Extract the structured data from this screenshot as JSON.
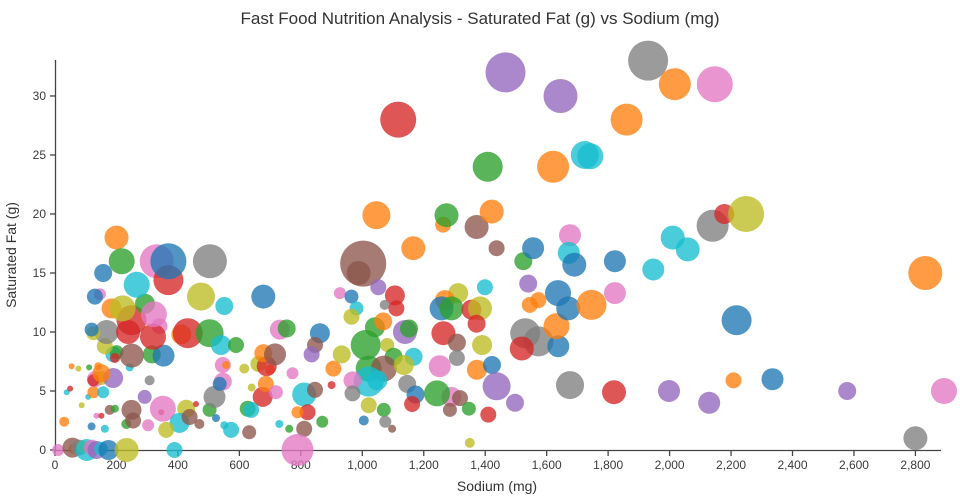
{
  "title": "Fast Food Nutrition Analysis - Saturated Fat (g) vs Sodium (mg)",
  "x_axis": {
    "label": "Sodium (mg)",
    "ticks": [
      0,
      200,
      400,
      600,
      800,
      1000,
      1200,
      1400,
      1600,
      1800,
      2000,
      2200,
      2400,
      2600,
      2800
    ],
    "range": [
      0,
      2880
    ],
    "tick_format": "comma"
  },
  "y_axis": {
    "label": "Saturated Fat (g)",
    "ticks": [
      0,
      5,
      10,
      15,
      20,
      25,
      30
    ],
    "range": [
      0,
      33.05
    ]
  },
  "style": {
    "background": "#ffffff",
    "axis_color": "#444444",
    "text_color": "#333333",
    "tick_label_color": "#3b3b3b",
    "marker_opacity": 0.78,
    "palette": {
      "blue": "#1f77b4",
      "orange": "#ff7f0e",
      "green": "#2ca02c",
      "red": "#d62728",
      "purple": "#9467bd",
      "brown": "#8c564b",
      "pink": "#e377c2",
      "gray": "#7f7f7f",
      "olive": "#bcbd22",
      "cyan": "#17becf"
    }
  },
  "chart_data": {
    "type": "scatter",
    "x_field": "sodium_mg",
    "y_field": "saturated_fat_g",
    "size_field": "marker_radius_px",
    "color_field": "category_color",
    "points": [
      [
        60,
        0.1,
        5,
        "orange"
      ],
      [
        10,
        0,
        6,
        "pink"
      ],
      [
        57,
        0.2,
        10,
        "brown"
      ],
      [
        78,
        0.2,
        8,
        "gray"
      ],
      [
        90,
        0.3,
        6,
        "olive"
      ],
      [
        103,
        0,
        11,
        "cyan"
      ],
      [
        120,
        0.2,
        8,
        "pink"
      ],
      [
        135,
        0,
        9,
        "purple"
      ],
      [
        150,
        0.1,
        7,
        "cyan"
      ],
      [
        174,
        0,
        10,
        "blue"
      ],
      [
        233,
        0,
        12,
        "olive"
      ],
      [
        389,
        0,
        8,
        "cyan"
      ],
      [
        30,
        2.4,
        5,
        "orange"
      ],
      [
        38,
        4.9,
        3,
        "cyan"
      ],
      [
        49,
        5.2,
        3,
        "red"
      ],
      [
        54,
        7.1,
        3,
        "orange"
      ],
      [
        76,
        6.9,
        3,
        "olive"
      ],
      [
        87,
        3.8,
        3,
        "olive"
      ],
      [
        108,
        4.5,
        3,
        "cyan"
      ],
      [
        111,
        7,
        3,
        "green"
      ],
      [
        135,
        2.9,
        3,
        "pink"
      ],
      [
        151,
        2.9,
        3,
        "red"
      ],
      [
        119,
        2,
        4,
        "blue"
      ],
      [
        162,
        1.8,
        4,
        "cyan"
      ],
      [
        141,
        7.1,
        4,
        "orange"
      ],
      [
        243,
        7,
        4,
        "cyan"
      ],
      [
        125,
        4.9,
        6,
        "orange"
      ],
      [
        157,
        4.9,
        6,
        "cyan"
      ],
      [
        130,
        6,
        8,
        "pink"
      ],
      [
        151,
        6.1,
        7,
        "olive"
      ],
      [
        189,
        6.1,
        10,
        "purple"
      ],
      [
        308,
        5.9,
        5,
        "gray"
      ],
      [
        125,
        5.9,
        6,
        "red"
      ],
      [
        151,
        6.5,
        9,
        "orange"
      ],
      [
        178,
        3.4,
        5,
        "brown"
      ],
      [
        195,
        3.5,
        4,
        "green"
      ],
      [
        232,
        2.2,
        5,
        "green"
      ],
      [
        249,
        3.4,
        10,
        "brown"
      ],
      [
        254,
        2.5,
        8,
        "brown"
      ],
      [
        303,
        2.1,
        6,
        "pink"
      ],
      [
        346,
        3.2,
        3,
        "red"
      ],
      [
        292,
        4.5,
        7,
        "purple"
      ],
      [
        351,
        3.5,
        13,
        "pink"
      ],
      [
        427,
        3.5,
        9,
        "olive"
      ],
      [
        405,
        2.3,
        10,
        "cyan"
      ],
      [
        362,
        1.7,
        8,
        "olive"
      ],
      [
        438,
        2.8,
        8,
        "brown"
      ],
      [
        470,
        2.2,
        5,
        "brown"
      ],
      [
        459,
        3.9,
        3,
        "red"
      ],
      [
        503,
        3.4,
        7,
        "green"
      ],
      [
        524,
        2.7,
        4,
        "blue"
      ],
      [
        551,
        2.1,
        4,
        "cyan"
      ],
      [
        519,
        4.5,
        11,
        "gray"
      ],
      [
        546,
        5.8,
        9,
        "pink"
      ],
      [
        536,
        5.6,
        7,
        "blue"
      ],
      [
        546,
        7.2,
        8,
        "pink"
      ],
      [
        557,
        7.2,
        4,
        "orange"
      ],
      [
        190,
        8.1,
        8,
        "cyan"
      ],
      [
        200,
        8.3,
        7,
        "green"
      ],
      [
        195,
        7.8,
        5,
        "red"
      ],
      [
        250,
        8,
        12,
        "brown"
      ],
      [
        315,
        8.1,
        9,
        "green"
      ],
      [
        353,
        8,
        11,
        "blue"
      ],
      [
        162,
        8.8,
        8,
        "olive"
      ],
      [
        168,
        10,
        12,
        "gray"
      ],
      [
        125,
        9.9,
        7,
        "olive"
      ],
      [
        119,
        10.2,
        7,
        "blue"
      ],
      [
        238,
        10,
        12,
        "red"
      ],
      [
        249,
        11,
        15,
        "red"
      ],
      [
        340,
        10.5,
        8,
        "pink"
      ],
      [
        319,
        9.6,
        13,
        "red"
      ],
      [
        411,
        9.8,
        10,
        "orange"
      ],
      [
        432,
        9.9,
        15,
        "red"
      ],
      [
        503,
        9.9,
        14,
        "green"
      ],
      [
        540,
        8.9,
        10,
        "cyan"
      ],
      [
        589,
        8.9,
        8,
        "green"
      ],
      [
        184,
        12,
        10,
        "orange"
      ],
      [
        220,
        12,
        13,
        "olive"
      ],
      [
        293,
        12.4,
        10,
        "green"
      ],
      [
        322,
        11.5,
        13,
        "pink"
      ],
      [
        146,
        13.2,
        6,
        "pink"
      ],
      [
        130,
        13,
        8,
        "blue"
      ],
      [
        266,
        14,
        13,
        "cyan"
      ],
      [
        475,
        13,
        14,
        "olive"
      ],
      [
        551,
        12.2,
        9,
        "cyan"
      ],
      [
        678,
        13,
        12,
        "blue"
      ],
      [
        200,
        18,
        12,
        "orange"
      ],
      [
        217,
        16,
        13,
        "green"
      ],
      [
        157,
        15,
        9,
        "blue"
      ],
      [
        331,
        16,
        17,
        "pink"
      ],
      [
        369,
        14.4,
        15,
        "red"
      ],
      [
        369,
        16,
        18,
        "blue"
      ],
      [
        504,
        16,
        17,
        "gray"
      ],
      [
        616,
        6.9,
        5,
        "olive"
      ],
      [
        700,
        6.8,
        5,
        "orange"
      ],
      [
        773,
        6.5,
        6,
        "pink"
      ],
      [
        900,
        5.5,
        4,
        "red"
      ],
      [
        640,
        5.3,
        4,
        "olive"
      ],
      [
        662,
        7.3,
        8,
        "olive"
      ],
      [
        689,
        7.1,
        10,
        "red"
      ],
      [
        678,
        8.2,
        9,
        "orange"
      ],
      [
        716,
        8.1,
        11,
        "brown"
      ],
      [
        676,
        4.5,
        10,
        "red"
      ],
      [
        686,
        5.6,
        8,
        "orange"
      ],
      [
        627,
        3.5,
        8,
        "green"
      ],
      [
        638,
        3.4,
        8,
        "cyan"
      ],
      [
        632,
        1.5,
        7,
        "brown"
      ],
      [
        573,
        1.7,
        8,
        "cyan"
      ],
      [
        719,
        4.9,
        7,
        "pink"
      ],
      [
        811,
        4.7,
        12,
        "cyan"
      ],
      [
        846,
        5.1,
        8,
        "brown"
      ],
      [
        822,
        3.2,
        8,
        "red"
      ],
      [
        811,
        1.8,
        8,
        "brown"
      ],
      [
        870,
        2.4,
        6,
        "green"
      ],
      [
        789,
        3.2,
        6,
        "orange"
      ],
      [
        762,
        1.8,
        4,
        "green"
      ],
      [
        730,
        2.2,
        4,
        "cyan"
      ],
      [
        789,
        0,
        16,
        "pink"
      ],
      [
        732,
        10.2,
        10,
        "pink"
      ],
      [
        754,
        10.3,
        9,
        "green"
      ],
      [
        862,
        9.9,
        10,
        "blue"
      ],
      [
        846,
        8.9,
        8,
        "brown"
      ],
      [
        835,
        8.1,
        8,
        "purple"
      ],
      [
        933,
        8.1,
        9,
        "olive"
      ],
      [
        906,
        6.9,
        8,
        "orange"
      ],
      [
        927,
        13.3,
        6,
        "pink"
      ],
      [
        965,
        13,
        7,
        "blue"
      ],
      [
        981,
        12,
        7,
        "cyan"
      ],
      [
        965,
        11.3,
        8,
        "olive"
      ],
      [
        1003,
        15.8,
        23,
        "brown"
      ],
      [
        988,
        15,
        12,
        "brown"
      ],
      [
        1052,
        13.8,
        8,
        "purple"
      ],
      [
        1106,
        13.1,
        10,
        "red"
      ],
      [
        1073,
        12.3,
        5,
        "gray"
      ],
      [
        1111,
        12,
        8,
        "red"
      ],
      [
        1312,
        13.3,
        10,
        "olive"
      ],
      [
        1269,
        12.7,
        10,
        "orange"
      ],
      [
        1258,
        12,
        12,
        "blue"
      ],
      [
        1290,
        12,
        12,
        "green"
      ],
      [
        1355,
        11.9,
        10,
        "red"
      ],
      [
        1383,
        12,
        12,
        "olive"
      ],
      [
        1399,
        13.8,
        8,
        "cyan"
      ],
      [
        1041,
        10.4,
        10,
        "green"
      ],
      [
        1068,
        10.9,
        9,
        "orange"
      ],
      [
        1139,
        10,
        12,
        "purple"
      ],
      [
        1152,
        10.3,
        9,
        "green"
      ],
      [
        1264,
        9.9,
        12,
        "red"
      ],
      [
        1372,
        10.7,
        9,
        "red"
      ],
      [
        1011,
        8.9,
        15,
        "green"
      ],
      [
        1081,
        8.9,
        7,
        "olive"
      ],
      [
        1308,
        9.1,
        9,
        "brown"
      ],
      [
        1390,
        8.9,
        10,
        "olive"
      ],
      [
        1308,
        7.8,
        8,
        "gray"
      ],
      [
        1102,
        7.9,
        9,
        "green"
      ],
      [
        1167,
        7.9,
        9,
        "cyan"
      ],
      [
        1021,
        6.9,
        13,
        "green"
      ],
      [
        1070,
        6.9,
        13,
        "brown"
      ],
      [
        1135,
        7.2,
        10,
        "olive"
      ],
      [
        1252,
        7.1,
        11,
        "pink"
      ],
      [
        1021,
        5.8,
        15,
        "cyan"
      ],
      [
        1049,
        5.9,
        10,
        "cyan"
      ],
      [
        968,
        5.9,
        9,
        "pink"
      ],
      [
        1146,
        5.6,
        9,
        "gray"
      ],
      [
        968,
        4.8,
        8,
        "gray"
      ],
      [
        1373,
        6.8,
        10,
        "orange"
      ],
      [
        1422,
        7.2,
        9,
        "blue"
      ],
      [
        1290,
        4.5,
        10,
        "pink"
      ],
      [
        1318,
        4.4,
        8,
        "brown"
      ],
      [
        1285,
        3.4,
        7,
        "brown"
      ],
      [
        1243,
        4.8,
        13,
        "green"
      ],
      [
        1173,
        4.7,
        9,
        "blue"
      ],
      [
        1162,
        3.9,
        8,
        "red"
      ],
      [
        1021,
        3.8,
        8,
        "olive"
      ],
      [
        1070,
        3.4,
        7,
        "green"
      ],
      [
        1347,
        3.5,
        7,
        "green"
      ],
      [
        1410,
        3,
        8,
        "red"
      ],
      [
        1437,
        5.4,
        14,
        "purple"
      ],
      [
        1497,
        4,
        9,
        "purple"
      ],
      [
        1075,
        2.4,
        6,
        "gray"
      ],
      [
        1097,
        1.8,
        4,
        "brown"
      ],
      [
        1005,
        2.5,
        5,
        "blue"
      ],
      [
        1350,
        0.6,
        5,
        "olive"
      ],
      [
        1046,
        19.9,
        14,
        "orange"
      ],
      [
        1166,
        17.1,
        12,
        "orange"
      ],
      [
        1263,
        19.1,
        8,
        "orange"
      ],
      [
        1274,
        19.9,
        12,
        "green"
      ],
      [
        1372,
        18.9,
        12,
        "brown"
      ],
      [
        1421,
        20.2,
        12,
        "orange"
      ],
      [
        1437,
        17.1,
        8,
        "brown"
      ],
      [
        1524,
        16,
        9,
        "green"
      ],
      [
        1556,
        17.1,
        11,
        "blue"
      ],
      [
        1540,
        14.1,
        9,
        "purple"
      ],
      [
        1676,
        18.2,
        11,
        "pink"
      ],
      [
        1672,
        16.7,
        11,
        "cyan"
      ],
      [
        1690,
        15.7,
        12,
        "blue"
      ],
      [
        1822,
        16,
        11,
        "blue"
      ],
      [
        1947,
        15.3,
        11,
        "cyan"
      ],
      [
        1408,
        24,
        15,
        "green"
      ],
      [
        1621,
        24,
        16,
        "orange"
      ],
      [
        1724,
        25,
        14,
        "cyan"
      ],
      [
        1742,
        24.9,
        13,
        "cyan"
      ],
      [
        1530,
        9.9,
        15,
        "gray"
      ],
      [
        1573,
        9.2,
        15,
        "gray"
      ],
      [
        1519,
        8.6,
        12,
        "red"
      ],
      [
        1638,
        8.8,
        11,
        "blue"
      ],
      [
        1632,
        10.5,
        13,
        "orange"
      ],
      [
        1545,
        12.3,
        8,
        "orange"
      ],
      [
        1573,
        12.7,
        8,
        "orange"
      ],
      [
        1637,
        13.3,
        13,
        "blue"
      ],
      [
        1670,
        12,
        12,
        "blue"
      ],
      [
        1746,
        12.3,
        15,
        "orange"
      ],
      [
        1822,
        13.3,
        11,
        "pink"
      ],
      [
        1676,
        5.5,
        14,
        "gray"
      ],
      [
        1819,
        4.9,
        12,
        "red"
      ],
      [
        1117,
        28,
        18,
        "red"
      ],
      [
        1466,
        32,
        20,
        "purple"
      ],
      [
        1645,
        30,
        17,
        "purple"
      ],
      [
        1930,
        33,
        20,
        "gray"
      ],
      [
        2017,
        31,
        16,
        "orange"
      ],
      [
        2147,
        31,
        18,
        "pink"
      ],
      [
        1860,
        28,
        16,
        "orange"
      ],
      [
        2140,
        19,
        16,
        "gray"
      ],
      [
        2178,
        20,
        10,
        "red"
      ],
      [
        2249,
        20,
        18,
        "olive"
      ],
      [
        2010,
        18,
        12,
        "cyan"
      ],
      [
        2059,
        17,
        12,
        "cyan"
      ],
      [
        2218,
        11,
        15,
        "blue"
      ],
      [
        2208,
        5.9,
        8,
        "orange"
      ],
      [
        2335,
        6,
        11,
        "blue"
      ],
      [
        2129,
        4,
        11,
        "purple"
      ],
      [
        1998,
        5,
        11,
        "purple"
      ],
      [
        2578,
        5,
        9,
        "purple"
      ],
      [
        2800,
        1,
        12,
        "gray"
      ],
      [
        2832,
        15,
        17,
        "orange"
      ],
      [
        2893,
        5,
        13,
        "pink"
      ]
    ]
  }
}
